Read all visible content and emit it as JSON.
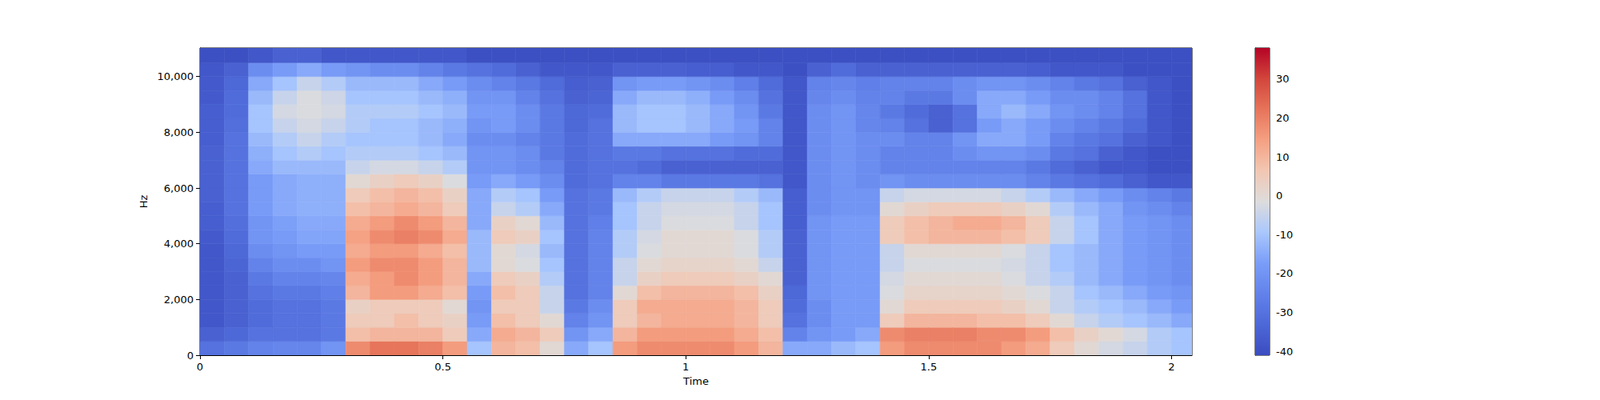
{
  "chart_data": {
    "type": "heatmap",
    "xlabel": "Time",
    "ylabel": "Hz",
    "xlim": [
      0,
      2.042
    ],
    "ylim": [
      0,
      11025
    ],
    "xticks": [
      0,
      0.5,
      1,
      1.5,
      2
    ],
    "yticks": [
      0,
      2000,
      4000,
      6000,
      8000,
      10000
    ],
    "x_edges": [
      0,
      0.05,
      0.1,
      0.15,
      0.2,
      0.25,
      0.3,
      0.35,
      0.4,
      0.45,
      0.5,
      0.55,
      0.6,
      0.65,
      0.7,
      0.75,
      0.8,
      0.85,
      0.9,
      0.95,
      1,
      1.05,
      1.1,
      1.15,
      1.2,
      1.25,
      1.3,
      1.35,
      1.4,
      1.45,
      1.5,
      1.55,
      1.6,
      1.65,
      1.7,
      1.75,
      1.8,
      1.85,
      1.9,
      1.95,
      2,
      2.05
    ],
    "y_edges": [
      0,
      500,
      1000,
      1500,
      2000,
      2500,
      3000,
      3500,
      4000,
      4500,
      5000,
      5500,
      6000,
      6500,
      7000,
      7500,
      8000,
      8500,
      9000,
      9500,
      10000,
      10500,
      11025
    ],
    "z": [
      [
        -30,
        -35,
        -38,
        -38,
        -38,
        -38,
        -38,
        -38,
        -37,
        -36,
        -36,
        -35,
        -35,
        -35,
        -35,
        -36,
        -36,
        -36,
        -37,
        -37,
        -38,
        -40
      ],
      [
        -28,
        -33,
        -35,
        -35,
        -35,
        -35,
        -34,
        -33,
        -32,
        -31,
        -30,
        -30,
        -30,
        -30,
        -30,
        -30,
        -31,
        -32,
        -32,
        -33,
        -35,
        -40
      ],
      [
        -25,
        -30,
        -32,
        -32,
        -30,
        -28,
        -25,
        -22,
        -20,
        -20,
        -18,
        -18,
        -18,
        -15,
        -14,
        -12,
        -10,
        -10,
        -12,
        -15,
        -22,
        -38
      ],
      [
        -24,
        -30,
        -30,
        -30,
        -28,
        -25,
        -22,
        -20,
        -18,
        -17,
        -15,
        -15,
        -15,
        -12,
        -10,
        -8,
        -5,
        -3,
        -5,
        -10,
        -18,
        -35
      ],
      [
        -24,
        -30,
        -30,
        -30,
        -28,
        -25,
        -22,
        -18,
        -16,
        -15,
        -14,
        -14,
        -14,
        -12,
        -8,
        -5,
        -3,
        -2,
        -2,
        -5,
        -15,
        -35
      ],
      [
        -20,
        -28,
        -28,
        -28,
        -26,
        -24,
        -20,
        -18,
        -16,
        -15,
        -14,
        -14,
        -14,
        -12,
        -10,
        -8,
        -5,
        -3,
        -4,
        -8,
        -18,
        -38
      ],
      [
        18,
        8,
        5,
        3,
        10,
        12,
        15,
        12,
        14,
        12,
        8,
        5,
        0,
        -5,
        -8,
        -10,
        -8,
        -8,
        -10,
        -12,
        -20,
        -38
      ],
      [
        22,
        10,
        5,
        5,
        15,
        15,
        18,
        15,
        18,
        15,
        10,
        8,
        3,
        -3,
        -8,
        -10,
        -10,
        -8,
        -10,
        -12,
        -22,
        -38
      ],
      [
        22,
        10,
        8,
        5,
        15,
        18,
        18,
        15,
        20,
        18,
        12,
        10,
        5,
        -3,
        -8,
        -10,
        -10,
        -8,
        -10,
        -12,
        -22,
        -38
      ],
      [
        20,
        10,
        5,
        5,
        12,
        15,
        15,
        12,
        18,
        15,
        10,
        8,
        3,
        -5,
        -10,
        -12,
        -12,
        -10,
        -12,
        -15,
        -25,
        -38
      ],
      [
        15,
        5,
        3,
        0,
        8,
        10,
        10,
        8,
        12,
        10,
        5,
        3,
        -2,
        -8,
        -12,
        -15,
        -14,
        -12,
        -14,
        -18,
        -28,
        -38
      ],
      [
        -10,
        -15,
        -18,
        -20,
        -18,
        -15,
        -12,
        -12,
        -12,
        -15,
        -15,
        -15,
        -18,
        -20,
        -20,
        -22,
        -20,
        -18,
        -20,
        -22,
        -30,
        -40
      ],
      [
        10,
        12,
        8,
        5,
        8,
        5,
        0,
        0,
        5,
        3,
        -5,
        -8,
        -15,
        -20,
        -20,
        -22,
        -18,
        -18,
        -20,
        -25,
        -32,
        -40
      ],
      [
        8,
        10,
        5,
        5,
        5,
        3,
        -2,
        -3,
        3,
        0,
        -8,
        -10,
        -18,
        -22,
        -22,
        -25,
        -22,
        -22,
        -25,
        -28,
        -35,
        -40
      ],
      [
        0,
        5,
        0,
        -5,
        -5,
        -8,
        -10,
        -12,
        -10,
        -12,
        -15,
        -18,
        -22,
        -25,
        -28,
        -28,
        -28,
        -28,
        -30,
        -32,
        -38,
        -40
      ],
      [
        -15,
        -20,
        -25,
        -28,
        -30,
        -30,
        -30,
        -30,
        -30,
        -30,
        -30,
        -30,
        -32,
        -32,
        -32,
        -32,
        -33,
        -33,
        -35,
        -36,
        -38,
        -40
      ],
      [
        -10,
        -15,
        -20,
        -22,
        -25,
        -25,
        -25,
        -25,
        -25,
        -26,
        -28,
        -28,
        -30,
        -30,
        -30,
        -30,
        -30,
        -32,
        -34,
        -35,
        -38,
        -40
      ],
      [
        15,
        10,
        5,
        5,
        0,
        -5,
        -5,
        -8,
        -8,
        -10,
        -10,
        -12,
        -25,
        -30,
        -28,
        -15,
        -12,
        -12,
        -15,
        -20,
        -35,
        -40
      ],
      [
        18,
        15,
        10,
        12,
        8,
        3,
        0,
        -2,
        -3,
        -5,
        -5,
        -8,
        -25,
        -32,
        -28,
        -15,
        -10,
        -10,
        -12,
        -18,
        -35,
        -40
      ],
      [
        18,
        15,
        12,
        12,
        10,
        5,
        2,
        0,
        0,
        -2,
        -3,
        -5,
        -28,
        -35,
        -30,
        -15,
        -10,
        -10,
        -12,
        -18,
        -35,
        -40
      ],
      [
        18,
        15,
        12,
        12,
        10,
        5,
        2,
        0,
        0,
        -2,
        -3,
        -5,
        -28,
        -35,
        -30,
        -15,
        -12,
        -12,
        -14,
        -20,
        -36,
        -40
      ],
      [
        18,
        15,
        12,
        12,
        10,
        5,
        2,
        0,
        0,
        -2,
        -3,
        -5,
        -28,
        -35,
        -30,
        -18,
        -15,
        -15,
        -18,
        -22,
        -36,
        -40
      ],
      [
        15,
        12,
        10,
        10,
        8,
        3,
        0,
        -2,
        -2,
        -5,
        -5,
        -8,
        -28,
        -35,
        -32,
        -20,
        -18,
        -20,
        -22,
        -26,
        -38,
        -40
      ],
      [
        10,
        8,
        5,
        5,
        3,
        0,
        -5,
        -8,
        -8,
        -10,
        -10,
        -12,
        -30,
        -35,
        -32,
        -25,
        -25,
        -28,
        -30,
        -32,
        -38,
        -40
      ],
      [
        -15,
        -25,
        -30,
        -32,
        -33,
        -35,
        -35,
        -35,
        -35,
        -36,
        -36,
        -36,
        -38,
        -38,
        -38,
        -38,
        -38,
        -38,
        -38,
        -38,
        -40,
        -40
      ],
      [
        -15,
        -20,
        -22,
        -22,
        -20,
        -20,
        -20,
        -20,
        -20,
        -20,
        -22,
        -22,
        -22,
        -22,
        -22,
        -22,
        -22,
        -22,
        -24,
        -25,
        -35,
        -40
      ],
      [
        -12,
        -18,
        -18,
        -18,
        -18,
        -18,
        -18,
        -18,
        -18,
        -18,
        -20,
        -20,
        -20,
        -20,
        -20,
        -20,
        -20,
        -20,
        -22,
        -24,
        -32,
        -40
      ],
      [
        -10,
        -15,
        -18,
        -18,
        -18,
        -18,
        -18,
        -18,
        -18,
        -18,
        -20,
        -20,
        -22,
        -22,
        -22,
        -22,
        -24,
        -24,
        -25,
        -26,
        -35,
        -40
      ],
      [
        15,
        18,
        5,
        0,
        -2,
        -3,
        -5,
        -5,
        5,
        5,
        0,
        -5,
        -20,
        -25,
        -25,
        -22,
        -25,
        -28,
        -25,
        -25,
        -35,
        -40
      ],
      [
        18,
        20,
        10,
        5,
        2,
        0,
        -2,
        0,
        8,
        8,
        3,
        -3,
        -22,
        -25,
        -25,
        -25,
        -30,
        -32,
        -28,
        -25,
        -35,
        -40
      ],
      [
        18,
        20,
        10,
        5,
        2,
        0,
        -2,
        0,
        10,
        10,
        5,
        -3,
        -22,
        -25,
        -25,
        -25,
        -35,
        -35,
        -28,
        -25,
        -35,
        -40
      ],
      [
        18,
        20,
        10,
        5,
        2,
        0,
        -2,
        0,
        10,
        12,
        5,
        -3,
        -22,
        -25,
        -22,
        -20,
        -30,
        -30,
        -22,
        -22,
        -35,
        -40
      ],
      [
        18,
        18,
        8,
        5,
        2,
        0,
        -2,
        0,
        10,
        12,
        5,
        -3,
        -22,
        -25,
        -20,
        -15,
        -18,
        -15,
        -15,
        -20,
        -35,
        -40
      ],
      [
        15,
        18,
        8,
        3,
        0,
        -2,
        -3,
        -2,
        8,
        10,
        3,
        -5,
        -22,
        -25,
        -20,
        -15,
        -15,
        -12,
        -15,
        -20,
        -35,
        -40
      ],
      [
        12,
        15,
        5,
        0,
        -2,
        -5,
        -5,
        -5,
        5,
        5,
        0,
        -8,
        -25,
        -28,
        -22,
        -18,
        -18,
        -15,
        -18,
        -22,
        -36,
        -40
      ],
      [
        5,
        8,
        0,
        -5,
        -5,
        -8,
        -10,
        -10,
        -5,
        -5,
        -8,
        -12,
        -28,
        -32,
        -28,
        -25,
        -22,
        -20,
        -22,
        -25,
        -38,
        -40
      ],
      [
        0,
        3,
        -5,
        -8,
        -10,
        -12,
        -12,
        -12,
        -10,
        -10,
        -12,
        -15,
        -30,
        -35,
        -30,
        -28,
        -25,
        -22,
        -22,
        -28,
        -38,
        -40
      ],
      [
        -3,
        0,
        -8,
        -10,
        -12,
        -15,
        -15,
        -15,
        -15,
        -15,
        -15,
        -18,
        -32,
        -38,
        -35,
        -30,
        -28,
        -25,
        -25,
        -30,
        -38,
        -40
      ],
      [
        -5,
        -3,
        -10,
        -12,
        -15,
        -18,
        -18,
        -18,
        -18,
        -18,
        -20,
        -22,
        -35,
        -38,
        -38,
        -35,
        -32,
        -30,
        -30,
        -35,
        -40,
        -40
      ],
      [
        -8,
        -8,
        -12,
        -15,
        -18,
        -20,
        -20,
        -20,
        -20,
        -20,
        -22,
        -25,
        -38,
        -40,
        -40,
        -38,
        -38,
        -38,
        -38,
        -38,
        -40,
        -40
      ],
      [
        -10,
        -10,
        -15,
        -18,
        -20,
        -22,
        -22,
        -22,
        -22,
        -22,
        -25,
        -28,
        -38,
        -40,
        -40,
        -40,
        -40,
        -40,
        -40,
        -40,
        -40,
        -40
      ]
    ],
    "colorbar": {
      "range": [
        -41,
        38
      ],
      "ticks": [
        -40,
        -30,
        -20,
        -10,
        0,
        10,
        20,
        30
      ]
    }
  }
}
